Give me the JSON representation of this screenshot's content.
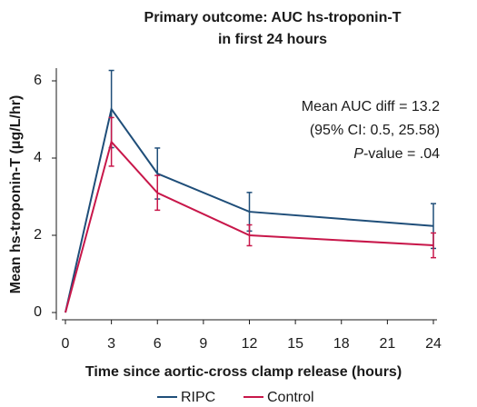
{
  "chart_data": {
    "type": "line",
    "title": [
      "Primary outcome: AUC hs-troponin-T",
      "in first 24 hours"
    ],
    "xlabel": "Time since aortic-cross clamp release (hours)",
    "ylabel": "Mean hs-troponin-T (μg/L/hr)",
    "annotations": [
      "Mean AUC diff = 13.2",
      "(95% CI: 0.5, 25.58)"
    ],
    "annotation_p": [
      "P",
      "-value = .04"
    ],
    "x": [
      0,
      3,
      6,
      12,
      24
    ],
    "series": [
      {
        "name": "RIPC",
        "color": "#1f4e79",
        "values": [
          0,
          5.27,
          3.6,
          2.61,
          2.24
        ],
        "errors": [
          0,
          1.0,
          0.66,
          0.5,
          0.58
        ]
      },
      {
        "name": "Control",
        "color": "#c8174a",
        "values": [
          0,
          4.42,
          3.1,
          2.0,
          1.74
        ],
        "errors": [
          0,
          0.63,
          0.45,
          0.27,
          0.32
        ]
      }
    ],
    "xlim": [
      0,
      24
    ],
    "xticks": [
      0,
      3,
      6,
      9,
      12,
      15,
      18,
      21,
      24
    ],
    "ylim": [
      0,
      6
    ],
    "yticks": [
      0,
      2,
      4,
      6
    ],
    "legend": "bottom"
  }
}
